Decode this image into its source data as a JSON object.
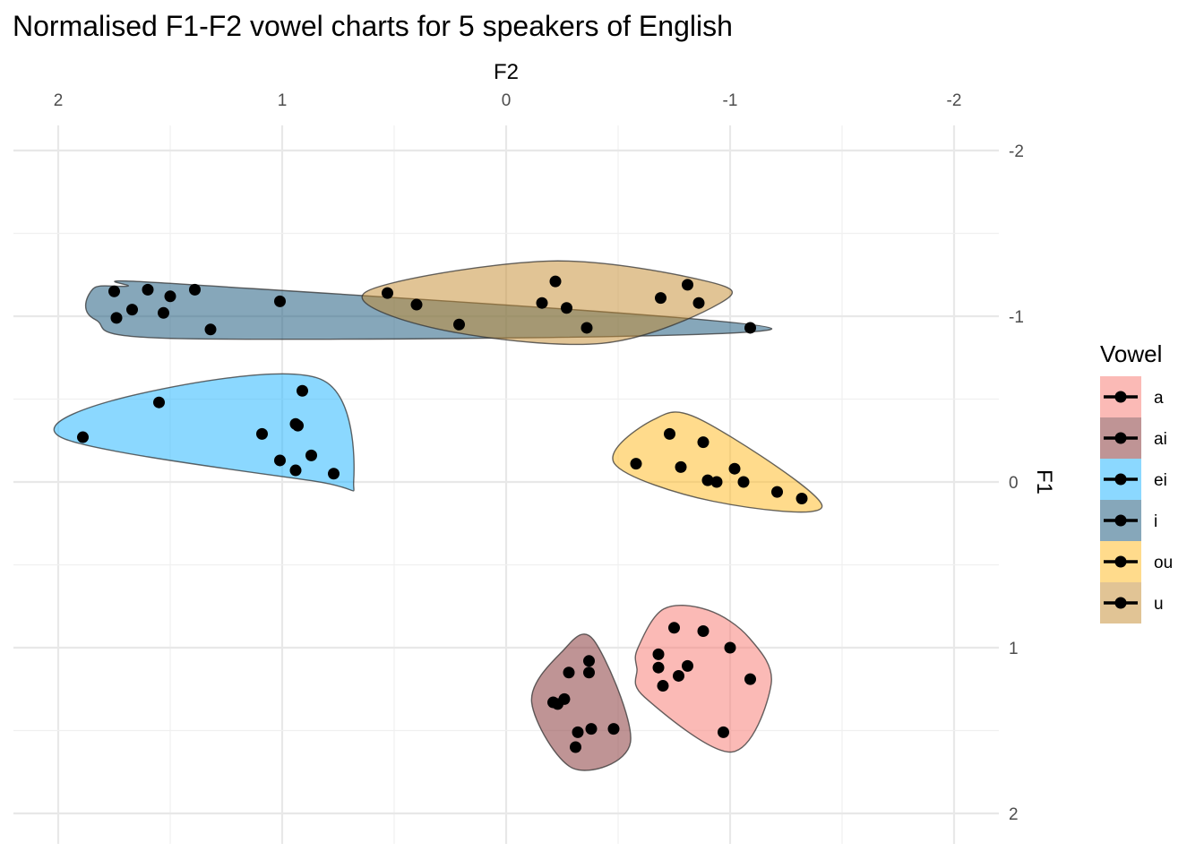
{
  "chart_data": {
    "type": "scatter",
    "title": "Normalised F1-F2 vowel charts for 5 speakers of English",
    "xlabel": "F2",
    "ylabel": "F1",
    "x_axis_position": "top",
    "y_axis_position": "right",
    "x_reversed": true,
    "y_reversed": true,
    "xlim": [
      2.0,
      -2.1
    ],
    "ylim": [
      -2.3,
      2.0
    ],
    "x_ticks": [
      2,
      1,
      0,
      -1,
      -2
    ],
    "x_tick_labels": [
      "2",
      "1",
      "0",
      "-1",
      "-2"
    ],
    "y_ticks": [
      -2,
      -1,
      0,
      1,
      2
    ],
    "y_tick_labels": [
      "-2",
      "-1",
      "0",
      "1",
      "2"
    ],
    "grid": true,
    "legend": {
      "title": "Vowel",
      "position": "right"
    },
    "series": [
      {
        "name": "a",
        "color": "#F8766D",
        "points": [
          [
            -0.75,
            0.88
          ],
          [
            -0.88,
            0.9
          ],
          [
            -1.0,
            1.0
          ],
          [
            -0.68,
            1.04
          ],
          [
            -0.68,
            1.12
          ],
          [
            -0.81,
            1.11
          ],
          [
            -0.77,
            1.17
          ],
          [
            -0.7,
            1.23
          ],
          [
            -1.09,
            1.19
          ],
          [
            -0.97,
            1.51
          ]
        ]
      },
      {
        "name": "ai",
        "color": "#7F2A2B",
        "points": [
          [
            -0.37,
            1.08
          ],
          [
            -0.28,
            1.15
          ],
          [
            -0.37,
            1.15
          ],
          [
            -0.26,
            1.31
          ],
          [
            -0.21,
            1.33
          ],
          [
            -0.23,
            1.34
          ],
          [
            -0.38,
            1.49
          ],
          [
            -0.32,
            1.51
          ],
          [
            -0.48,
            1.49
          ],
          [
            -0.31,
            1.6
          ]
        ]
      },
      {
        "name": "ei",
        "color": "#18B2FF",
        "points": [
          [
            0.91,
            -0.55
          ],
          [
            1.55,
            -0.48
          ],
          [
            0.94,
            -0.35
          ],
          [
            0.93,
            -0.34
          ],
          [
            1.89,
            -0.27
          ],
          [
            1.09,
            -0.29
          ],
          [
            1.01,
            -0.13
          ],
          [
            0.87,
            -0.16
          ],
          [
            0.94,
            -0.07
          ],
          [
            0.77,
            -0.05
          ]
        ]
      },
      {
        "name": "i",
        "color": "#0D4F75",
        "points": [
          [
            1.75,
            -1.15
          ],
          [
            1.6,
            -1.16
          ],
          [
            1.5,
            -1.12
          ],
          [
            1.39,
            -1.16
          ],
          [
            1.74,
            -0.99
          ],
          [
            1.67,
            -1.04
          ],
          [
            1.53,
            -1.02
          ],
          [
            1.32,
            -0.92
          ],
          [
            1.01,
            -1.09
          ],
          [
            -1.09,
            -0.93
          ]
        ]
      },
      {
        "name": "ou",
        "color": "#FFB719",
        "points": [
          [
            -0.73,
            -0.29
          ],
          [
            -0.88,
            -0.24
          ],
          [
            -0.58,
            -0.11
          ],
          [
            -0.78,
            -0.09
          ],
          [
            -1.02,
            -0.08
          ],
          [
            -0.9,
            -0.01
          ],
          [
            -0.94,
            0.0
          ],
          [
            -1.06,
            0.0
          ],
          [
            -1.21,
            0.06
          ],
          [
            -1.32,
            0.1
          ]
        ]
      },
      {
        "name": "u",
        "color": "#C48A2C",
        "points": [
          [
            -0.22,
            -1.21
          ],
          [
            -0.81,
            -1.19
          ],
          [
            0.53,
            -1.14
          ],
          [
            -0.69,
            -1.11
          ],
          [
            -0.86,
            -1.08
          ],
          [
            0.4,
            -1.07
          ],
          [
            -0.16,
            -1.08
          ],
          [
            -0.27,
            -1.05
          ],
          [
            0.21,
            -0.95
          ],
          [
            -0.36,
            -0.93
          ]
        ]
      }
    ]
  }
}
